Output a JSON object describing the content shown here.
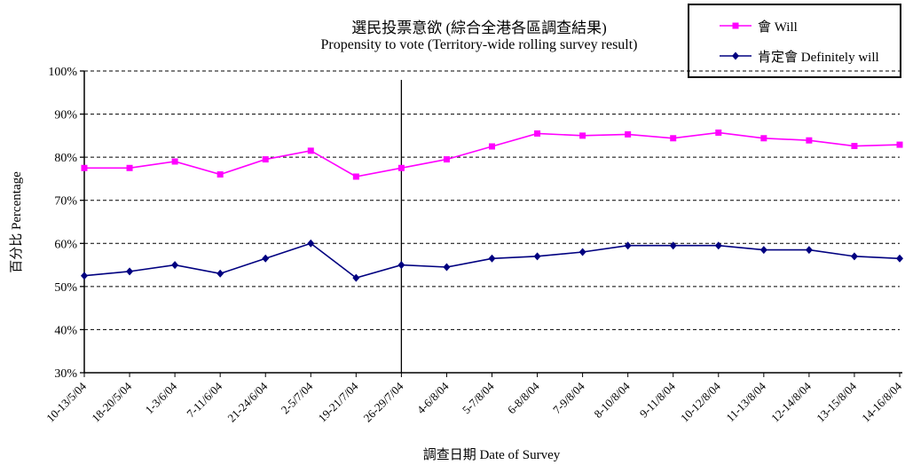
{
  "chart_data": {
    "type": "line",
    "title": "選民投票意欲 (綜合全港各區調查結果)",
    "subtitle": "Propensity to vote (Territory-wide rolling survey result)",
    "xlabel": "調查日期 Date of Survey",
    "ylabel": "百分比 Percentage",
    "ylim": [
      30,
      100
    ],
    "ytick_step": 10,
    "ytick_suffix": "%",
    "grid": "horizontal-dashed",
    "legend_position": "outside-top-right",
    "background": "#FFFFFF",
    "categories": [
      "10-13/5/04",
      "18-20/5/04",
      "1-3/6/04",
      "7-11/6/04",
      "21-24/6/04",
      "2-5/7/04",
      "19-21/7/04",
      "26-29/7/04",
      "4-6/8/04",
      "5-7/8/04",
      "6-8/8/04",
      "7-9/8/04",
      "8-10/8/04",
      "9-11/8/04",
      "10-12/8/04",
      "11-13/8/04",
      "12-14/8/04",
      "13-15/8/04",
      "14-16/8/04"
    ],
    "series": [
      {
        "name": "會 Will",
        "color": "#FF00FF",
        "marker": "square",
        "values": [
          77.5,
          77.5,
          79,
          76,
          79.5,
          81.5,
          75.5,
          77.5,
          79.5,
          82.5,
          85.5,
          85,
          85.3,
          84.4,
          85.7,
          84.4,
          83.9,
          82.6,
          82.9
        ]
      },
      {
        "name": "肯定會 Definitely will",
        "color": "#000080",
        "marker": "diamond",
        "values": [
          52.5,
          53.5,
          55,
          53,
          56.5,
          60,
          52,
          55,
          54.5,
          56.5,
          57,
          58,
          59.5,
          59.5,
          59.5,
          58.5,
          58.5,
          57,
          56.5
        ]
      }
    ],
    "vline_at_category": "26-29/7/04"
  }
}
